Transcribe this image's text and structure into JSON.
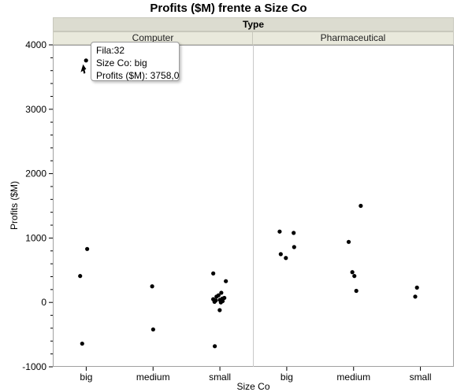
{
  "chart_data": {
    "type": "scatter",
    "title": "Profits ($M) frente a Size Co",
    "group_label": "Type",
    "panels": [
      {
        "name": "Computer",
        "categories": [
          "big",
          "medium",
          "small"
        ],
        "points": [
          {
            "x": "big",
            "y": 3758
          },
          {
            "x": "big",
            "y": 830
          },
          {
            "x": "big",
            "y": 410
          },
          {
            "x": "big",
            "y": -640
          },
          {
            "x": "medium",
            "y": 250
          },
          {
            "x": "medium",
            "y": -420
          },
          {
            "x": "small",
            "y": 450
          },
          {
            "x": "small",
            "y": 330
          },
          {
            "x": "small",
            "y": 150
          },
          {
            "x": "small",
            "y": 110
          },
          {
            "x": "small",
            "y": 90
          },
          {
            "x": "small",
            "y": 70
          },
          {
            "x": "small",
            "y": 60
          },
          {
            "x": "small",
            "y": 50
          },
          {
            "x": "small",
            "y": 40
          },
          {
            "x": "small",
            "y": 30
          },
          {
            "x": "small",
            "y": 20
          },
          {
            "x": "small",
            "y": 10
          },
          {
            "x": "small",
            "y": 0
          },
          {
            "x": "small",
            "y": -120
          },
          {
            "x": "small",
            "y": -680
          }
        ]
      },
      {
        "name": "Pharmaceutical",
        "categories": [
          "big",
          "medium",
          "small"
        ],
        "points": [
          {
            "x": "big",
            "y": 1100
          },
          {
            "x": "big",
            "y": 1080
          },
          {
            "x": "big",
            "y": 860
          },
          {
            "x": "big",
            "y": 750
          },
          {
            "x": "big",
            "y": 690
          },
          {
            "x": "medium",
            "y": 1500
          },
          {
            "x": "medium",
            "y": 940
          },
          {
            "x": "medium",
            "y": 470
          },
          {
            "x": "medium",
            "y": 410
          },
          {
            "x": "medium",
            "y": 180
          },
          {
            "x": "small",
            "y": 230
          },
          {
            "x": "small",
            "y": 90
          }
        ]
      }
    ],
    "ylabel": "Profits ($M)",
    "xlabel": "Size Co",
    "ylim": [
      -1000,
      4000
    ],
    "yticks": [
      -1000,
      0,
      1000,
      2000,
      3000,
      4000
    ],
    "grid": false,
    "marker_color": "#000000"
  },
  "tooltip": {
    "row": "Fila:32",
    "size": "Size Co: big",
    "profit": "Profits ($M): 3758,0"
  }
}
